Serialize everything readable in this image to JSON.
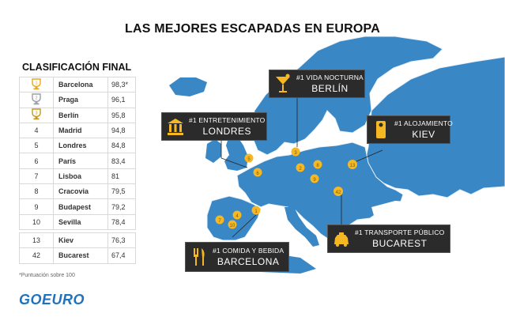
{
  "title": "LAS MEJORES ESCAPADAS EN EUROPA",
  "ranking": {
    "title": "CLASIFICACIÓN FINAL",
    "rows": [
      {
        "rank": "1",
        "trophy": "gold",
        "city": "Barcelona",
        "score": "98,3*"
      },
      {
        "rank": "2",
        "trophy": "silver",
        "city": "Praga",
        "score": "96,1"
      },
      {
        "rank": "3",
        "trophy": "bronze",
        "city": "Berlín",
        "score": "95,8"
      },
      {
        "rank": "4",
        "city": "Madrid",
        "score": "94,8"
      },
      {
        "rank": "5",
        "city": "Londres",
        "score": "84,8"
      },
      {
        "rank": "6",
        "city": "París",
        "score": "83,4"
      },
      {
        "rank": "7",
        "city": "Lisboa",
        "score": "81"
      },
      {
        "rank": "8",
        "city": "Cracovia",
        "score": "79,5"
      },
      {
        "rank": "9",
        "city": "Budapest",
        "score": "79,2"
      },
      {
        "rank": "10",
        "city": "Sevilla",
        "score": "78,4"
      }
    ],
    "extra_rows": [
      {
        "rank": "13",
        "city": "Kiev",
        "score": "76,3"
      },
      {
        "rank": "42",
        "city": "Bucarest",
        "score": "67,4"
      }
    ],
    "footnote": "*Puntuación sobre 100"
  },
  "logo": "GOEURO",
  "colors": {
    "map_land": "#3a87c6",
    "map_border": "#e9f2fa",
    "callout_bg": "#2b2b2b",
    "icon": "#f5b823",
    "logo": "#1e73be"
  },
  "callouts": [
    {
      "category": "#1 VIDA NOCTURNA",
      "city": "BERLÍN",
      "icon": "cocktail-icon"
    },
    {
      "category": "#1 ENTRETENIMIENTO",
      "city": "LONDRES",
      "icon": "museum-icon"
    },
    {
      "category": "#1 ALOJAMIENTO",
      "city": "KIEV",
      "icon": "door-hanger-icon"
    },
    {
      "category": "#1 TRANSPORTE PÚBLICO",
      "city": "BUCAREST",
      "icon": "taxi-icon"
    },
    {
      "category": "#1 COMIDA Y BEBIDA",
      "city": "BARCELONA",
      "icon": "fork-knife-icon"
    }
  ],
  "map_markers": [
    "1",
    "2",
    "3",
    "4",
    "5",
    "6",
    "7",
    "8",
    "9",
    "10",
    "13",
    "42"
  ]
}
